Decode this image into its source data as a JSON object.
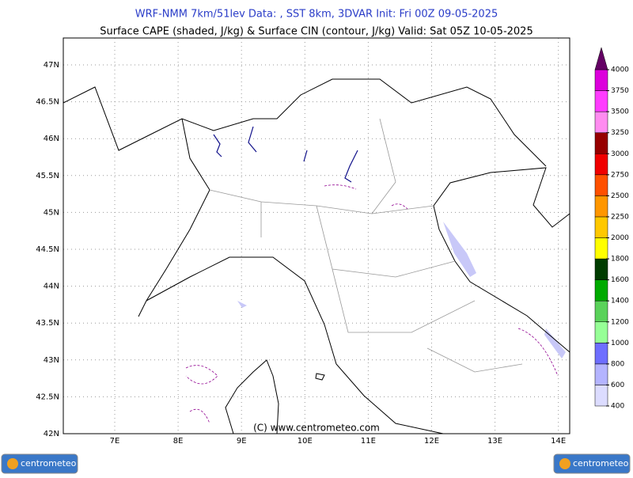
{
  "header": {
    "line1": "WRF-NMM 7km/51lev  Data: , SST 8km, 3DVAR  Init: Fri 00Z 09-05-2025",
    "line2": "Surface CAPE (shaded, J/kg) & Surface CIN (contour, J/kg)  Valid: Sat 05Z 10-05-2025"
  },
  "map": {
    "lat_labels": [
      "42N",
      "42.5N",
      "43N",
      "43.5N",
      "44N",
      "44.5N",
      "45N",
      "45.5N",
      "46N",
      "46.5N",
      "47N"
    ],
    "lon_labels": [
      "7E",
      "8E",
      "9E",
      "10E",
      "11E",
      "12E",
      "13E",
      "14E"
    ],
    "copyright": "(C) www.centrometeo.com"
  },
  "colorbar": {
    "levels": [
      400,
      600,
      800,
      1000,
      1200,
      1400,
      1600,
      1800,
      2000,
      2250,
      2500,
      2750,
      3000,
      3250,
      3500,
      3750,
      4000
    ],
    "colors": [
      "#dcdcff",
      "#b4b4ff",
      "#6e6eff",
      "#96ff96",
      "#5ad25a",
      "#00aa00",
      "#003c00",
      "#ffff00",
      "#ffc800",
      "#ff9600",
      "#ff5000",
      "#f00000",
      "#960000",
      "#ff8cf0",
      "#ff3cff",
      "#dc00dc"
    ],
    "top_color": "#640064"
  },
  "logos": {
    "left": "centrometeo",
    "right": "centrometeo"
  }
}
